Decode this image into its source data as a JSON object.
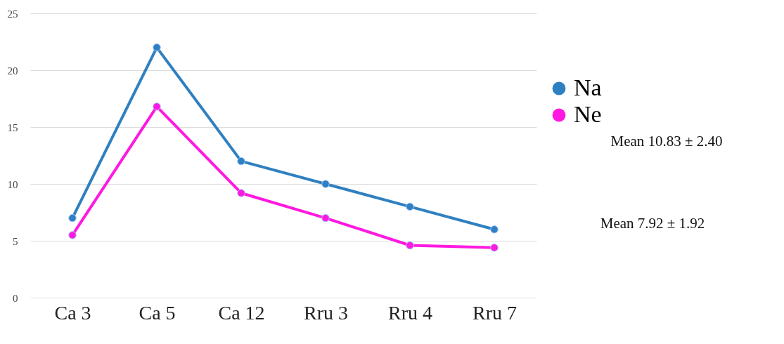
{
  "chart_data": {
    "type": "line",
    "categories": [
      "Ca 3",
      "Ca 5",
      "Ca 12",
      "Rru 3",
      "Rru 4",
      "Rru 7"
    ],
    "series": [
      {
        "name": "Na",
        "color": "#2f80c0",
        "values": [
          7,
          22,
          12,
          10,
          8,
          6
        ]
      },
      {
        "name": "Ne",
        "color": "#ff19e0",
        "values": [
          5.5,
          16.8,
          9.2,
          7,
          4.6,
          4.4
        ]
      }
    ],
    "ylim": [
      0,
      25
    ],
    "yticks": [
      0,
      5,
      10,
      15,
      20,
      25
    ],
    "grid": "y",
    "legend": "right",
    "marker": "circle",
    "line_style": "solid",
    "annotations": [
      "Mean 10.83 ± 2.40",
      "Mean 7.92 ± 1.92"
    ]
  }
}
